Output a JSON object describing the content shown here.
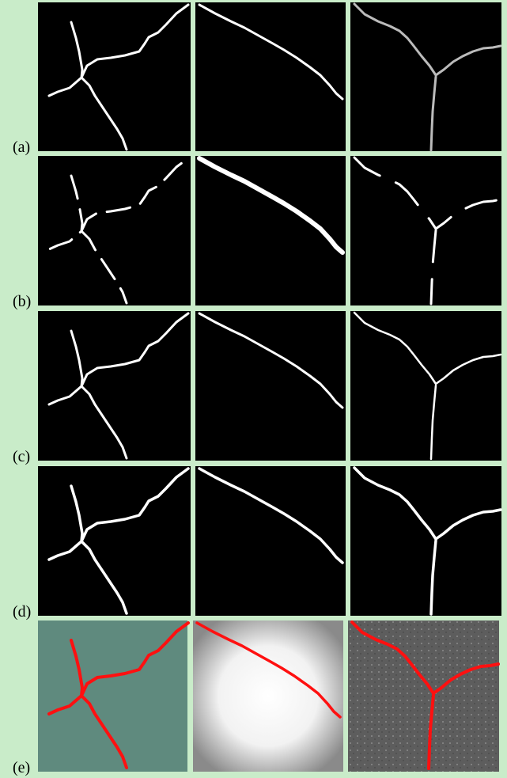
{
  "rows": [
    {
      "label": "(a)"
    },
    {
      "label": "(b)"
    },
    {
      "label": "(c)"
    },
    {
      "label": "(d)"
    },
    {
      "label": "(e)"
    }
  ]
}
